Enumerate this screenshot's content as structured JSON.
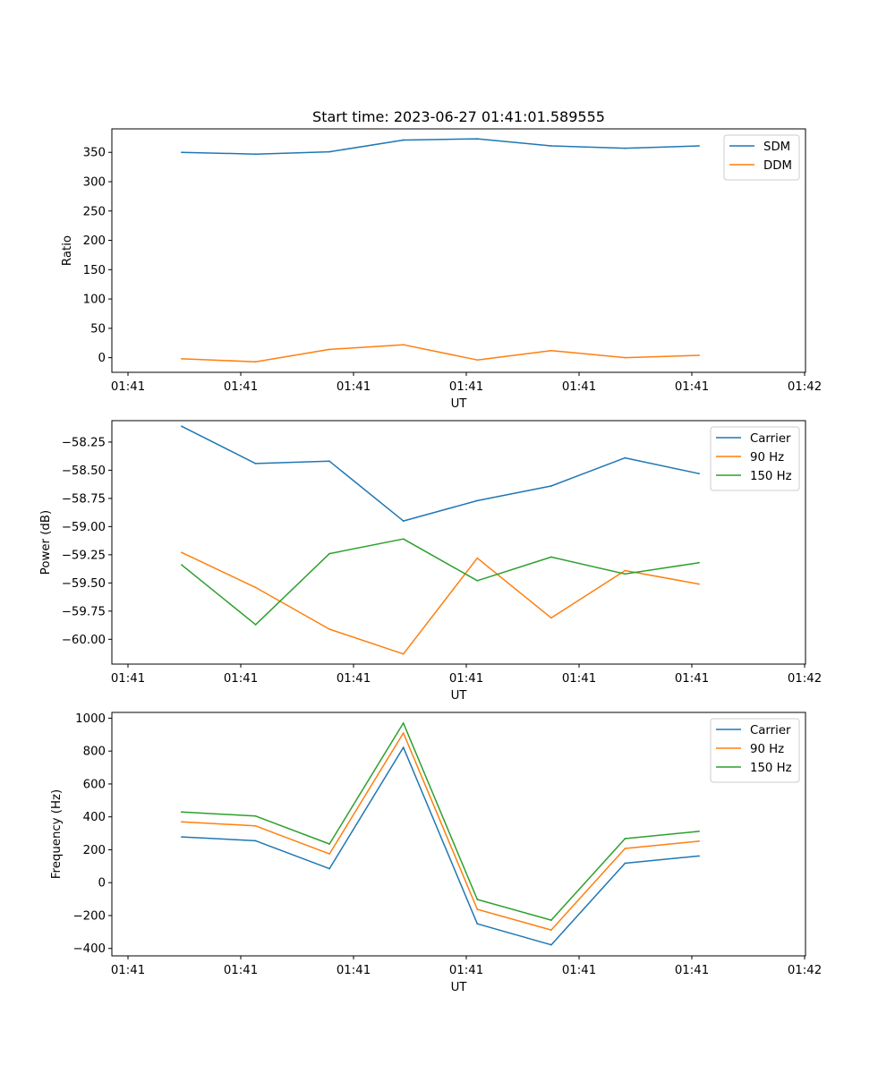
{
  "figure": {
    "title": "Start time: 2023-06-27 01:41:01.589555"
  },
  "colors": {
    "blue": "#1f77b4",
    "orange": "#ff7f0e",
    "green": "#2ca02c"
  },
  "chart_data": [
    {
      "type": "line",
      "title": "Start time: 2023-06-27 01:41:01.589555",
      "xlabel": "UT",
      "ylabel": "Ratio",
      "x_tick_labels": [
        "01:41",
        "01:41",
        "01:41",
        "01:41",
        "01:41",
        "01:41",
        "01:42"
      ],
      "x": [
        1,
        2,
        3,
        4,
        5,
        6,
        7,
        8
      ],
      "xlim": [
        0.2,
        9.5
      ],
      "ylim": [
        -25,
        390
      ],
      "yticks": [
        0,
        50,
        100,
        150,
        200,
        250,
        300,
        350
      ],
      "legend_position": "top-right",
      "series": [
        {
          "name": "SDM",
          "color": "#1f77b4",
          "values": [
            350,
            347,
            351,
            371,
            373,
            361,
            357,
            361
          ]
        },
        {
          "name": "DDM",
          "color": "#ff7f0e",
          "values": [
            -2,
            -7,
            14,
            22,
            -4,
            12,
            0,
            4
          ]
        }
      ]
    },
    {
      "type": "line",
      "xlabel": "UT",
      "ylabel": "Power (dB)",
      "x_tick_labels": [
        "01:41",
        "01:41",
        "01:41",
        "01:41",
        "01:41",
        "01:41",
        "01:42"
      ],
      "x": [
        1,
        2,
        3,
        4,
        5,
        6,
        7,
        8
      ],
      "xlim": [
        0.2,
        9.5
      ],
      "ylim": [
        -60.22,
        -58.06
      ],
      "yticks": [
        -60.0,
        -59.75,
        -59.5,
        -59.25,
        -59.0,
        -58.75,
        -58.5,
        -58.25
      ],
      "ytick_labels": [
        "−60.00",
        "−59.75",
        "−59.50",
        "−59.25",
        "−59.00",
        "−58.75",
        "−58.50",
        "−58.25"
      ],
      "legend_position": "top-right",
      "series": [
        {
          "name": "Carrier",
          "color": "#1f77b4",
          "values": [
            -58.11,
            -58.44,
            -58.42,
            -58.95,
            -58.77,
            -58.64,
            -58.39,
            -58.53
          ]
        },
        {
          "name": "90 Hz",
          "color": "#ff7f0e",
          "values": [
            -59.23,
            -59.54,
            -59.91,
            -60.13,
            -59.28,
            -59.81,
            -59.39,
            -59.51
          ]
        },
        {
          "name": "150 Hz",
          "color": "#2ca02c",
          "values": [
            -59.34,
            -59.87,
            -59.24,
            -59.11,
            -59.48,
            -59.27,
            -59.42,
            -59.32
          ]
        }
      ]
    },
    {
      "type": "line",
      "xlabel": "UT",
      "ylabel": "Frequency (Hz)",
      "x_tick_labels": [
        "01:41",
        "01:41",
        "01:41",
        "01:41",
        "01:41",
        "01:41",
        "01:42"
      ],
      "x": [
        1,
        2,
        3,
        4,
        5,
        6,
        7,
        8
      ],
      "xlim": [
        0.2,
        9.5
      ],
      "ylim": [
        -445,
        1035
      ],
      "yticks": [
        -400,
        -200,
        0,
        200,
        400,
        600,
        800,
        1000
      ],
      "ytick_labels": [
        "−400",
        "−200",
        "0",
        "200",
        "400",
        "600",
        "800",
        "1000"
      ],
      "legend_position": "top-right",
      "series": [
        {
          "name": "Carrier",
          "color": "#1f77b4",
          "values": [
            278,
            255,
            85,
            822,
            -250,
            -378,
            118,
            162
          ]
        },
        {
          "name": "90 Hz",
          "color": "#ff7f0e",
          "values": [
            370,
            345,
            175,
            910,
            -162,
            -288,
            208,
            252
          ]
        },
        {
          "name": "150 Hz",
          "color": "#2ca02c",
          "values": [
            430,
            405,
            235,
            970,
            -102,
            -228,
            268,
            312
          ]
        }
      ]
    }
  ]
}
